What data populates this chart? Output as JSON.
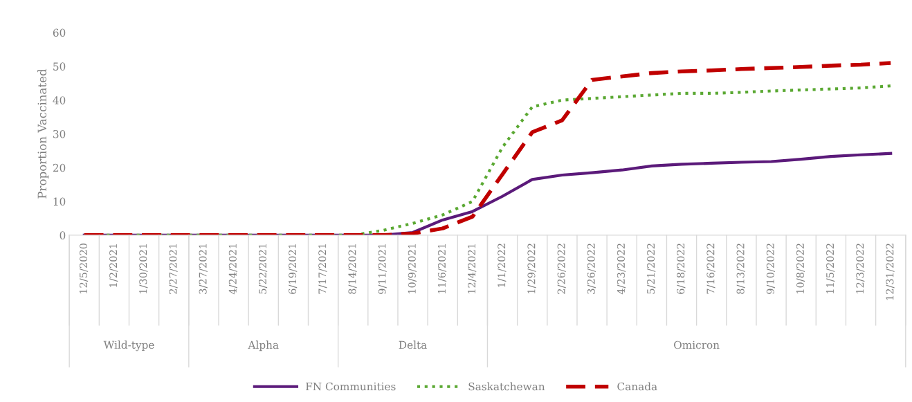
{
  "chart_data": {
    "type": "line",
    "categories": [
      "12/5/2020",
      "1/2/2021",
      "1/30/2021",
      "2/27/2021",
      "3/27/2021",
      "4/24/2021",
      "5/22/2021",
      "6/19/2021",
      "7/17/2021",
      "8/14/2021",
      "9/11/2021",
      "10/9/2021",
      "11/6/2021",
      "12/4/2021",
      "1/1/2022",
      "1/29/2022",
      "2/26/2022",
      "3/26/2022",
      "4/23/2022",
      "5/21/2022",
      "6/18/2022",
      "7/16/2022",
      "8/13/2022",
      "9/10/2022",
      "10/8/2022",
      "11/5/2022",
      "12/3/2022",
      "12/31/2022"
    ],
    "ylabel": "Proportion Vaccinated",
    "ylim": [
      0,
      60
    ],
    "yticks": [
      0,
      10,
      20,
      30,
      40,
      50,
      60
    ],
    "grid": false,
    "legend": "bottom",
    "marker": "none",
    "series": [
      {
        "name": "FN Communities",
        "color": "#5b1a7a",
        "line_style": "solid",
        "values": [
          0,
          0,
          0,
          0,
          0,
          0,
          0,
          0,
          0,
          0,
          0,
          0.8,
          4.5,
          7,
          11.5,
          16.5,
          17.8,
          18.5,
          19.3,
          20.5,
          21,
          21.3,
          21.6,
          21.8,
          22.5,
          23.3,
          23.8,
          24.2
        ]
      },
      {
        "name": "Saskatchewan",
        "color": "#5aa832",
        "line_style": "dotted",
        "values": [
          0,
          0,
          0,
          0,
          0,
          0,
          0,
          0,
          0,
          0,
          1.4,
          3.5,
          6,
          10,
          26,
          38,
          40,
          40.5,
          41,
          41.5,
          42,
          42,
          42.3,
          42.7,
          43,
          43.3,
          43.6,
          44.2
        ]
      },
      {
        "name": "Canada",
        "color": "#c00000",
        "line_style": "dashed",
        "values": [
          0,
          0,
          0,
          0,
          0,
          0,
          0,
          0,
          0,
          0,
          0,
          0.5,
          2,
          5.5,
          18,
          30.5,
          34,
          46,
          47,
          48,
          48.5,
          48.8,
          49.2,
          49.5,
          49.8,
          50.2,
          50.5,
          51
        ]
      }
    ],
    "annotations": [
      "Wild-type",
      "Alpha",
      "Delta",
      "Omicron"
    ]
  }
}
